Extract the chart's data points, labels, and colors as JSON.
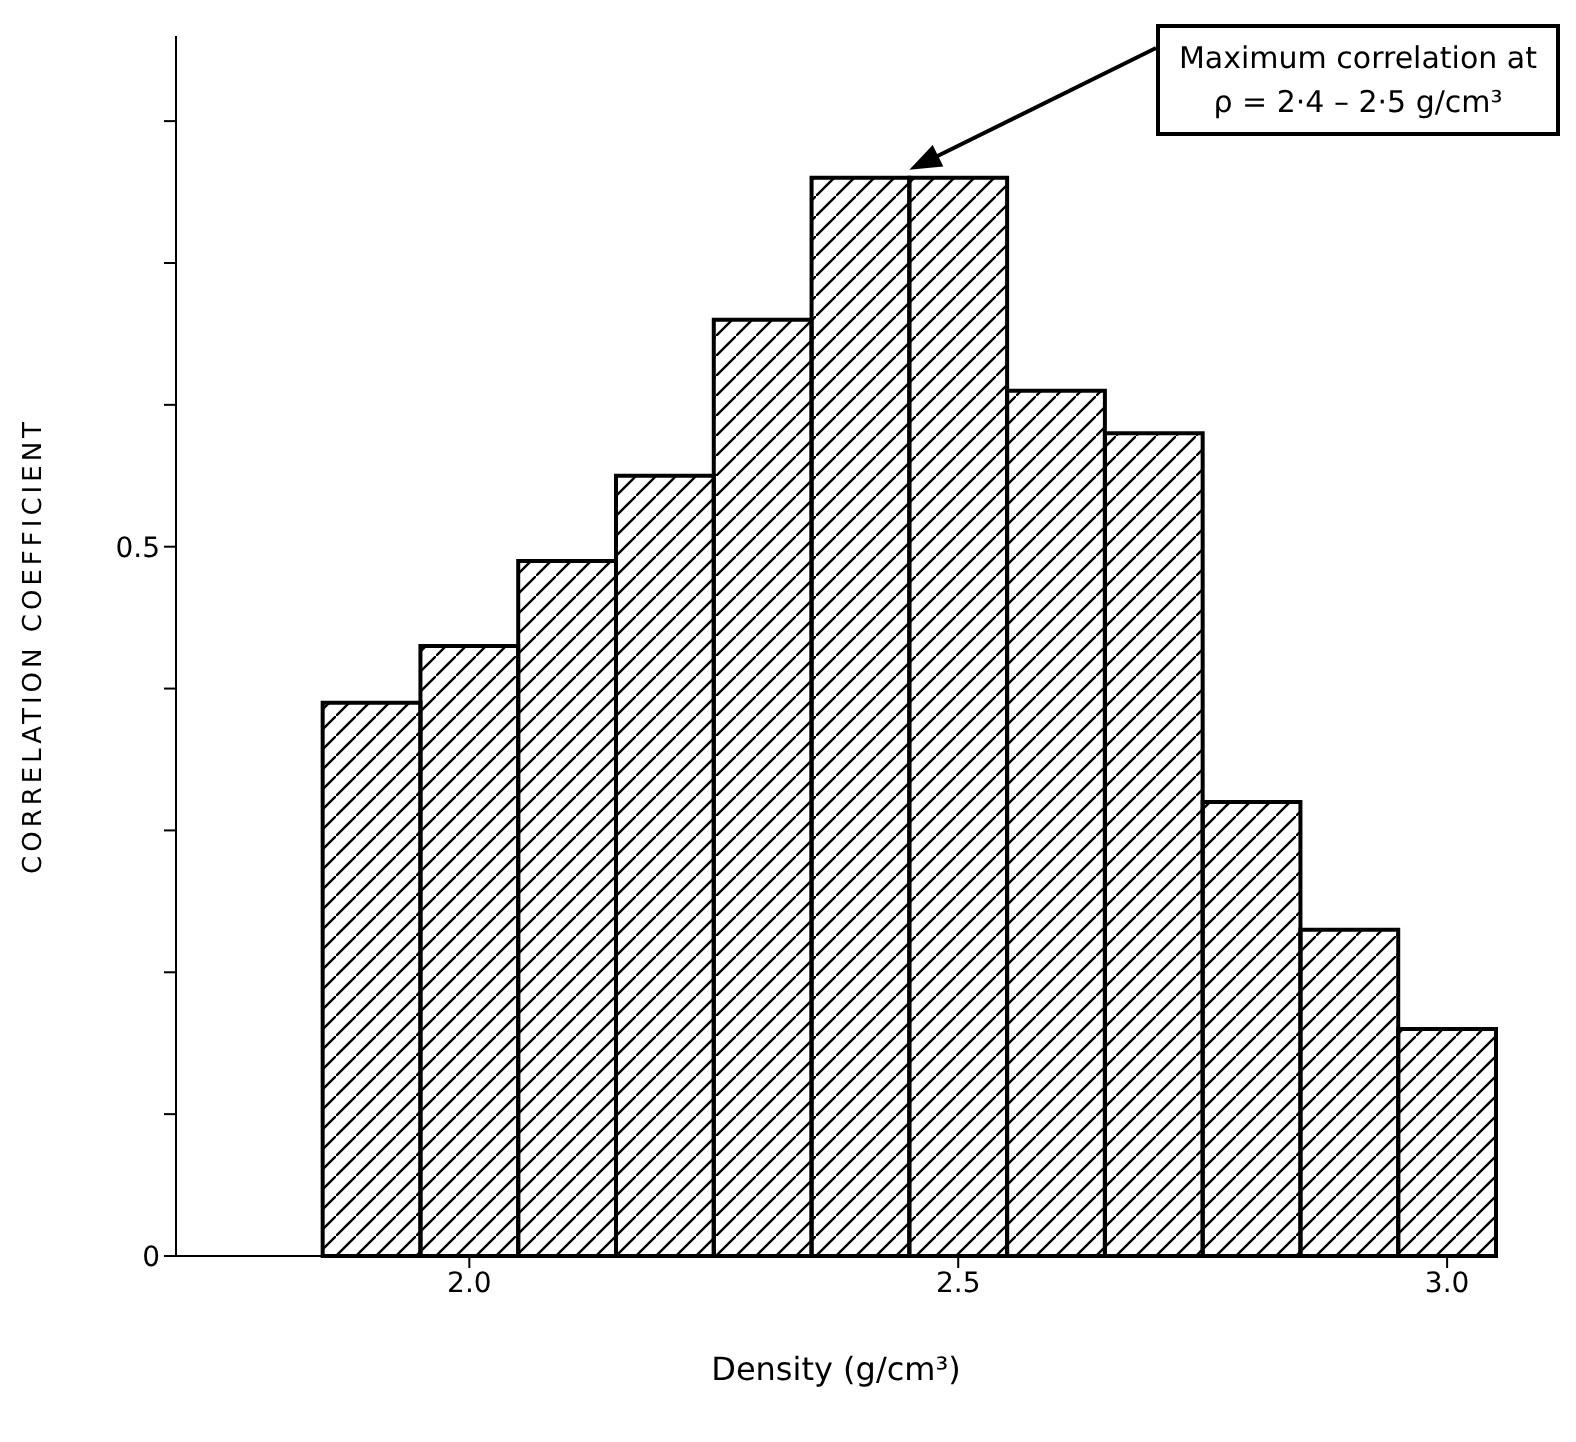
{
  "chart_data": {
    "type": "histogram",
    "xlabel": "Density (g/cm³)",
    "ylabel": "CORRELATION COEFFICIENT",
    "bins": [
      1.85,
      1.95,
      2.05,
      2.15,
      2.25,
      2.35,
      2.45,
      2.55,
      2.65,
      2.75,
      2.85,
      2.95,
      3.05
    ],
    "values": [
      0.39,
      0.43,
      0.49,
      0.55,
      0.66,
      0.76,
      0.76,
      0.61,
      0.58,
      0.32,
      0.23,
      0.16
    ],
    "color": "#000000",
    "xlim": [
      1.7,
      3.05
    ],
    "xticks": [
      {
        "value": 2.0,
        "label": "2.0"
      },
      {
        "value": 2.5,
        "label": "2.5"
      },
      {
        "value": 3.0,
        "label": "3.0"
      }
    ],
    "ylim": [
      0,
      0.86
    ],
    "yticks": [
      {
        "value": 0,
        "label": "0"
      },
      {
        "value": 0.1,
        "label": null
      },
      {
        "value": 0.2,
        "label": null
      },
      {
        "value": 0.3,
        "label": null
      },
      {
        "value": 0.4,
        "label": null
      },
      {
        "value": 0.5,
        "label": "0.5"
      },
      {
        "value": 0.6,
        "label": null
      },
      {
        "value": 0.7,
        "label": null
      },
      {
        "value": 0.8,
        "label": null
      }
    ],
    "annotations": [
      "Maximum correlation at ρ = 2·4 – 2·5 g/cm³"
    ],
    "grid": false
  }
}
